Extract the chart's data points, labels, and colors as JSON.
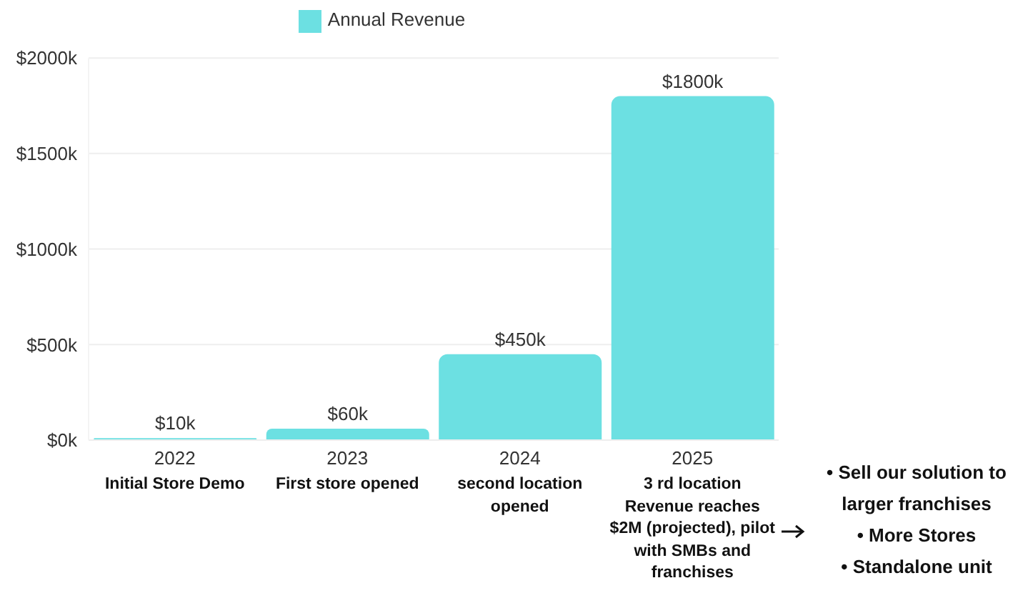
{
  "chart_data": {
    "type": "bar",
    "categories": [
      "2022",
      "2023",
      "2024",
      "2025"
    ],
    "series": [
      {
        "name": "Annual Revenue",
        "color": "#6ce0e2",
        "values": [
          10,
          60,
          450,
          1800
        ],
        "value_labels": [
          "$10k",
          "$60k",
          "$450k",
          "$1800k"
        ]
      }
    ],
    "ylim": [
      0,
      2000
    ],
    "yticks": [
      {
        "value": 0,
        "label": "$0k"
      },
      {
        "value": 500,
        "label": "$500k"
      },
      {
        "value": 1000,
        "label": "$1000k"
      },
      {
        "value": 1500,
        "label": "$1500k"
      },
      {
        "value": 2000,
        "label": "$2000k"
      }
    ],
    "grid": "y",
    "legend": "top",
    "annotations": [
      "Initial Store Demo",
      "First store opened",
      "second location opened",
      "3 rd location Revenue reaches $2M (projected), pilot with SMBs and franchises",
      "• Sell our solution to larger franchises",
      "• More Stores",
      "• Standalone unit"
    ]
  }
}
